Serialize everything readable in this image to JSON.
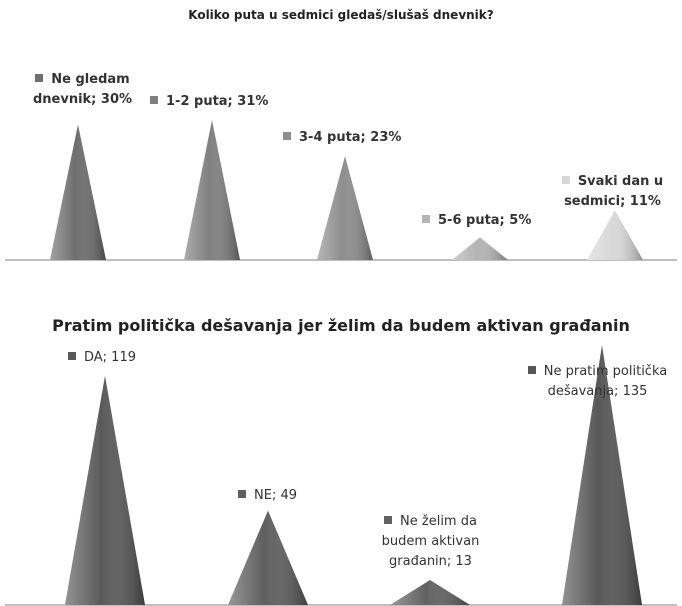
{
  "chart_data": [
    {
      "type": "cone",
      "title": "Koliko puta u sedmici gledaš/slušaš dnevnik?",
      "values": [
        30,
        31,
        23,
        5,
        11
      ],
      "value_labels": [
        "Ne gledam dnevnik; 30%",
        "1-2 puta; 31%",
        "3-4 puta; 23%",
        "5-6 puta; 5%",
        "Svaki dan u sedmici; 11%"
      ],
      "colors": [
        "#6e6e6e",
        "#808080",
        "#8e8e8e",
        "#b4b4b4",
        "#d8d8d8"
      ]
    },
    {
      "type": "cone",
      "title": "Pratim politička dešavanja jer želim da budem aktivan građanin",
      "values": [
        119,
        49,
        13,
        135
      ],
      "value_labels": [
        "DA; 119",
        "NE; 49",
        "Ne želim da budem aktivan građanin; 13",
        "Ne pratim politička dešavanja; 135"
      ],
      "colors": [
        "#5a5a5a",
        "#5f5f5f",
        "#626262",
        "#585858"
      ]
    }
  ]
}
